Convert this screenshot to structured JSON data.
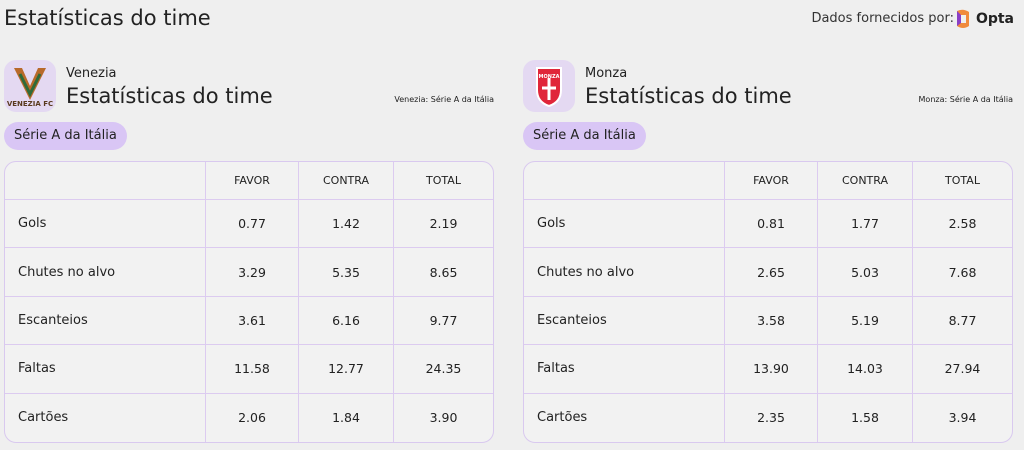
{
  "header": {
    "title": "Estatísticas do time",
    "provider_label": "Dados fornecidos por:",
    "provider_name": "Opta"
  },
  "teams": [
    {
      "logo_text": "VENEZIA FC",
      "name": "Venezia",
      "subtitle": "Estatísticas do time",
      "competition_note": "Venezia: Série A da Itália",
      "competition": "Série A da Itália",
      "table": {
        "columns": [
          "FAVOR",
          "CONTRA",
          "TOTAL"
        ],
        "rows": [
          [
            "Gols",
            "0.77",
            "1.42",
            "2.19"
          ],
          [
            "Chutes no alvo",
            "3.29",
            "5.35",
            "8.65"
          ],
          [
            "Escanteios",
            "3.61",
            "6.16",
            "9.77"
          ],
          [
            "Faltas",
            "11.58",
            "12.77",
            "24.35"
          ],
          [
            "Cartões",
            "2.06",
            "1.84",
            "3.90"
          ]
        ]
      }
    },
    {
      "logo_text": "MONZA",
      "name": "Monza",
      "subtitle": "Estatísticas do time",
      "competition_note": "Monza: Série A da Itália",
      "competition": "Série A da Itália",
      "table": {
        "columns": [
          "FAVOR",
          "CONTRA",
          "TOTAL"
        ],
        "rows": [
          [
            "Gols",
            "0.81",
            "1.77",
            "2.58"
          ],
          [
            "Chutes no alvo",
            "2.65",
            "5.03",
            "7.68"
          ],
          [
            "Escanteios",
            "3.58",
            "5.19",
            "8.77"
          ],
          [
            "Faltas",
            "13.90",
            "14.03",
            "27.94"
          ],
          [
            "Cartões",
            "2.35",
            "1.58",
            "3.94"
          ]
        ]
      }
    }
  ]
}
